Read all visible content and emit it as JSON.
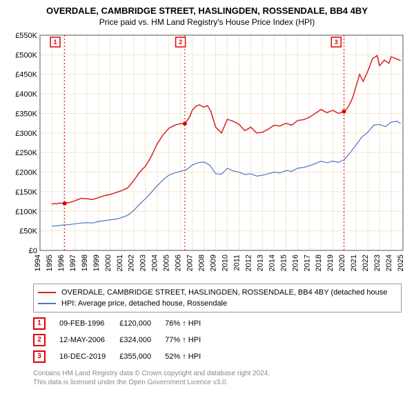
{
  "title": "OVERDALE, CAMBRIDGE STREET, HASLINGDEN, ROSSENDALE, BB4 4BY",
  "subtitle": "Price paid vs. HM Land Registry's House Price Index (HPI)",
  "chart": {
    "type": "line",
    "x_axis": {
      "min": 1994,
      "max": 2025,
      "ticks": [
        1994,
        1995,
        1996,
        1997,
        1998,
        1999,
        2000,
        2001,
        2002,
        2003,
        2004,
        2005,
        2006,
        2007,
        2008,
        2009,
        2010,
        2011,
        2012,
        2013,
        2014,
        2015,
        2016,
        2017,
        2018,
        2019,
        2020,
        2021,
        2022,
        2023,
        2024,
        2025
      ],
      "label_rotation_deg": -90
    },
    "y_axis": {
      "min": 0,
      "max": 550000,
      "ticks": [
        0,
        50000,
        100000,
        150000,
        200000,
        250000,
        300000,
        350000,
        400000,
        450000,
        500000,
        550000
      ],
      "tick_labels": [
        "£0",
        "£50K",
        "£100K",
        "£150K",
        "£200K",
        "£250K",
        "£300K",
        "£350K",
        "£400K",
        "£450K",
        "£500K",
        "£550K"
      ]
    },
    "grid_color": "#f2e6cc",
    "axis_color": "#555555",
    "background_color": "#ffffff",
    "series": [
      {
        "id": "property",
        "label": "OVERDALE, CAMBRIDGE STREET, HASLINGDEN, ROSSENDALE, BB4 4BY (detached house",
        "color": "#d92020",
        "line_width": 1.5,
        "data": [
          [
            1995.0,
            118000
          ],
          [
            1995.2,
            120000
          ],
          [
            1995.4,
            119000
          ],
          [
            1995.7,
            121000
          ],
          [
            1996.0,
            120000
          ],
          [
            1996.5,
            122000
          ],
          [
            1997.0,
            127000
          ],
          [
            1997.5,
            133000
          ],
          [
            1998.0,
            132000
          ],
          [
            1998.5,
            130000
          ],
          [
            1999.0,
            135000
          ],
          [
            1999.5,
            140000
          ],
          [
            2000.0,
            143000
          ],
          [
            2000.5,
            148000
          ],
          [
            2001.0,
            153000
          ],
          [
            2001.5,
            160000
          ],
          [
            2002.0,
            178000
          ],
          [
            2002.5,
            200000
          ],
          [
            2003.0,
            215000
          ],
          [
            2003.5,
            240000
          ],
          [
            2004.0,
            272000
          ],
          [
            2004.5,
            295000
          ],
          [
            2005.0,
            312000
          ],
          [
            2005.5,
            320000
          ],
          [
            2006.0,
            324000
          ],
          [
            2006.37,
            324000
          ],
          [
            2006.8,
            342000
          ],
          [
            2007.0,
            358000
          ],
          [
            2007.3,
            368000
          ],
          [
            2007.6,
            372000
          ],
          [
            2008.0,
            366000
          ],
          [
            2008.3,
            370000
          ],
          [
            2008.6,
            355000
          ],
          [
            2009.0,
            315000
          ],
          [
            2009.5,
            300000
          ],
          [
            2010.0,
            335000
          ],
          [
            2010.5,
            330000
          ],
          [
            2011.0,
            322000
          ],
          [
            2011.5,
            306000
          ],
          [
            2012.0,
            315000
          ],
          [
            2012.5,
            300000
          ],
          [
            2013.0,
            302000
          ],
          [
            2013.5,
            310000
          ],
          [
            2014.0,
            320000
          ],
          [
            2014.5,
            318000
          ],
          [
            2015.0,
            325000
          ],
          [
            2015.5,
            320000
          ],
          [
            2016.0,
            332000
          ],
          [
            2016.5,
            334000
          ],
          [
            2017.0,
            340000
          ],
          [
            2017.5,
            350000
          ],
          [
            2018.0,
            360000
          ],
          [
            2018.5,
            352000
          ],
          [
            2019.0,
            358000
          ],
          [
            2019.5,
            350000
          ],
          [
            2019.96,
            355000
          ],
          [
            2020.3,
            365000
          ],
          [
            2020.7,
            390000
          ],
          [
            2021.0,
            420000
          ],
          [
            2021.3,
            450000
          ],
          [
            2021.6,
            432000
          ],
          [
            2022.0,
            458000
          ],
          [
            2022.4,
            490000
          ],
          [
            2022.8,
            498000
          ],
          [
            2023.0,
            472000
          ],
          [
            2023.4,
            486000
          ],
          [
            2023.8,
            478000
          ],
          [
            2024.0,
            495000
          ],
          [
            2024.4,
            490000
          ],
          [
            2024.8,
            485000
          ]
        ]
      },
      {
        "id": "hpi",
        "label": "HPI: Average price, detached house, Rossendale",
        "color": "#4a74c4",
        "line_width": 1.2,
        "data": [
          [
            1995.0,
            62000
          ],
          [
            1995.5,
            63000
          ],
          [
            1996.0,
            65000
          ],
          [
            1996.5,
            66000
          ],
          [
            1997.0,
            68000
          ],
          [
            1997.5,
            70000
          ],
          [
            1998.0,
            71000
          ],
          [
            1998.5,
            70000
          ],
          [
            1999.0,
            74000
          ],
          [
            1999.5,
            76000
          ],
          [
            2000.0,
            78000
          ],
          [
            2000.5,
            80000
          ],
          [
            2001.0,
            84000
          ],
          [
            2001.5,
            90000
          ],
          [
            2002.0,
            102000
          ],
          [
            2002.5,
            118000
          ],
          [
            2003.0,
            132000
          ],
          [
            2003.5,
            148000
          ],
          [
            2004.0,
            165000
          ],
          [
            2004.5,
            180000
          ],
          [
            2005.0,
            192000
          ],
          [
            2005.5,
            198000
          ],
          [
            2006.0,
            202000
          ],
          [
            2006.5,
            206000
          ],
          [
            2007.0,
            218000
          ],
          [
            2007.5,
            224000
          ],
          [
            2008.0,
            226000
          ],
          [
            2008.5,
            218000
          ],
          [
            2009.0,
            196000
          ],
          [
            2009.5,
            195000
          ],
          [
            2010.0,
            210000
          ],
          [
            2010.5,
            203000
          ],
          [
            2011.0,
            200000
          ],
          [
            2011.5,
            194000
          ],
          [
            2012.0,
            196000
          ],
          [
            2012.5,
            190000
          ],
          [
            2013.0,
            192000
          ],
          [
            2013.5,
            196000
          ],
          [
            2014.0,
            200000
          ],
          [
            2014.5,
            198000
          ],
          [
            2015.0,
            204000
          ],
          [
            2015.5,
            202000
          ],
          [
            2016.0,
            210000
          ],
          [
            2016.5,
            212000
          ],
          [
            2017.0,
            216000
          ],
          [
            2017.5,
            222000
          ],
          [
            2018.0,
            228000
          ],
          [
            2018.5,
            224000
          ],
          [
            2019.0,
            228000
          ],
          [
            2019.5,
            225000
          ],
          [
            2020.0,
            232000
          ],
          [
            2020.5,
            250000
          ],
          [
            2021.0,
            270000
          ],
          [
            2021.5,
            290000
          ],
          [
            2022.0,
            302000
          ],
          [
            2022.5,
            320000
          ],
          [
            2023.0,
            322000
          ],
          [
            2023.5,
            316000
          ],
          [
            2024.0,
            328000
          ],
          [
            2024.5,
            330000
          ],
          [
            2024.8,
            324000
          ]
        ]
      }
    ],
    "sale_markers": [
      {
        "n": "1",
        "x": 1996.1,
        "y": 120000,
        "badge_x": 1995.3
      },
      {
        "n": "2",
        "x": 2006.37,
        "y": 324000,
        "badge_x": 2006.0
      },
      {
        "n": "3",
        "x": 2019.96,
        "y": 355000,
        "badge_x": 2019.3
      }
    ],
    "marker_line_color": "#e00000",
    "marker_line_dash": "2,3",
    "marker_dot_color": "#e00000",
    "marker_dot_radius": 3
  },
  "legend": {
    "items": [
      {
        "color": "#d92020",
        "label": "OVERDALE, CAMBRIDGE STREET, HASLINGDEN, ROSSENDALE, BB4 4BY (detached house"
      },
      {
        "color": "#4a74c4",
        "label": "HPI: Average price, detached house, Rossendale"
      }
    ]
  },
  "sales_table": {
    "rows": [
      {
        "n": "1",
        "date": "09-FEB-1996",
        "price": "£120,000",
        "pct": "76% ↑ HPI"
      },
      {
        "n": "2",
        "date": "12-MAY-2006",
        "price": "£324,000",
        "pct": "77% ↑ HPI"
      },
      {
        "n": "3",
        "date": "16-DEC-2019",
        "price": "£355,000",
        "pct": "52% ↑ HPI"
      }
    ]
  },
  "footer": {
    "line1": "Contains HM Land Registry data © Crown copyright and database right 2024.",
    "line2": "This data is licensed under the Open Government Licence v3.0."
  }
}
